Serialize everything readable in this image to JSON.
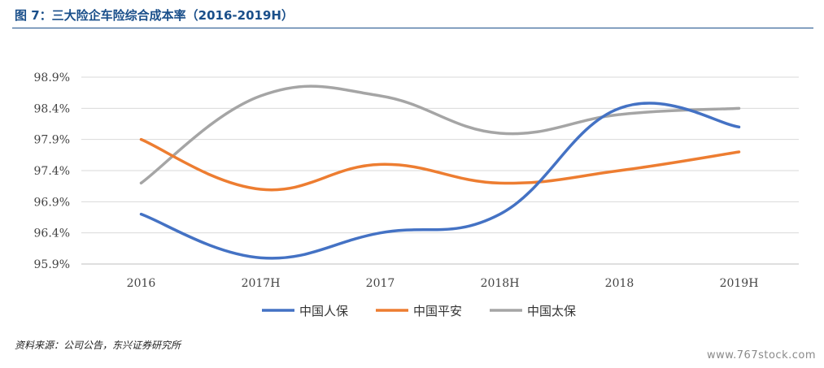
{
  "title": "图 7：三大险企车险综合成本率（2016-2019H）",
  "source": "资料来源：公司公告，东兴证券研究所",
  "watermark": "www.767stock.com",
  "chart_data": {
    "type": "line",
    "categories": [
      "2016",
      "2017H",
      "2017",
      "2018H",
      "2018",
      "2019H"
    ],
    "y_ticks": [
      "95.9%",
      "96.4%",
      "96.9%",
      "97.4%",
      "97.9%",
      "98.4%",
      "98.9%"
    ],
    "ylim": [
      95.9,
      98.9
    ],
    "grid": true,
    "smooth": true,
    "legend_position": "bottom",
    "series": [
      {
        "name": "中国人保",
        "color": "#4472c4",
        "values": [
          96.7,
          96.0,
          96.4,
          96.7,
          98.4,
          98.1
        ]
      },
      {
        "name": "中国平安",
        "color": "#ed7d31",
        "values": [
          97.9,
          97.1,
          97.5,
          97.2,
          97.4,
          97.7
        ]
      },
      {
        "name": "中国太保",
        "color": "#a5a5a5",
        "values": [
          97.2,
          98.6,
          98.6,
          98.0,
          98.3,
          98.4
        ]
      }
    ]
  }
}
